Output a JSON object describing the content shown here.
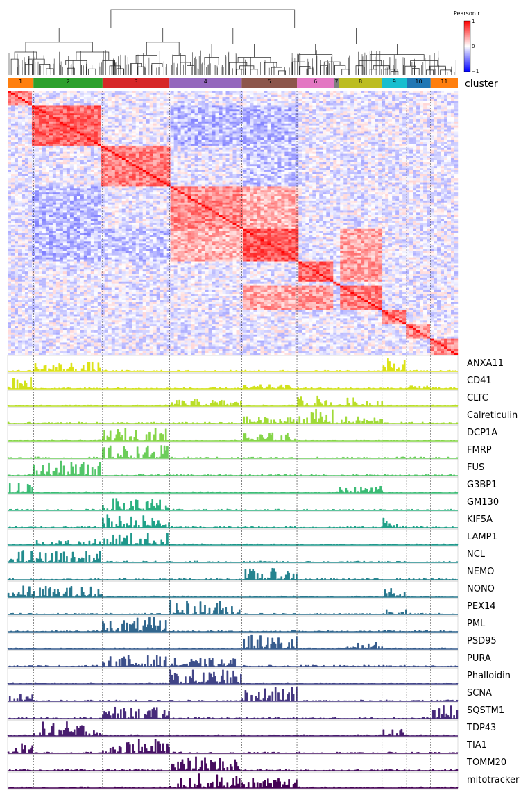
{
  "chart_data": {
    "type": "heatmap",
    "title": "",
    "colorbar": {
      "label": "Pearson r",
      "ticks": [
        "1",
        "0",
        "−1"
      ],
      "range": [
        -1,
        1
      ],
      "colors": {
        "low": "#0000ff",
        "mid": "#ffffff",
        "high": "#ff0000"
      }
    },
    "cluster_row_label": "cluster",
    "clusters": [
      {
        "id": "1",
        "fraction": 0.058,
        "color": "#ff7f0e"
      },
      {
        "id": "2",
        "fraction": 0.155,
        "color": "#2ca02c"
      },
      {
        "id": "3",
        "fraction": 0.15,
        "color": "#d62728"
      },
      {
        "id": "4",
        "fraction": 0.162,
        "color": "#9467bd"
      },
      {
        "id": "5",
        "fraction": 0.124,
        "color": "#8c564b"
      },
      {
        "id": "6",
        "fraction": 0.083,
        "color": "#e377c2"
      },
      {
        "id": "7",
        "fraction": 0.011,
        "color": "#7f7f7f"
      },
      {
        "id": "8",
        "fraction": 0.097,
        "color": "#bcbd22"
      },
      {
        "id": "9",
        "fraction": 0.055,
        "color": "#17becf"
      },
      {
        "id": "10",
        "fraction": 0.054,
        "color": "#1f77b4"
      },
      {
        "id": "11",
        "fraction": 0.061,
        "color": "#ff7f0e"
      }
    ],
    "within_cluster_correlation": [
      0.5,
      0.6,
      0.5,
      0.45,
      0.65,
      0.6,
      0.4,
      0.5,
      0.5,
      0.45,
      0.45
    ],
    "cross_cluster_correlation": [
      {
        "a": "4",
        "b": "5",
        "r": 0.3
      },
      {
        "a": "5",
        "b": "8",
        "r": 0.35
      },
      {
        "a": "6",
        "b": "8",
        "r": 0.4
      },
      {
        "a": "2",
        "b": "4",
        "r": -0.25
      },
      {
        "a": "2",
        "b": "5",
        "r": -0.25
      },
      {
        "a": "3",
        "b": "5",
        "r": -0.2
      }
    ],
    "tracks": [
      {
        "name": "ANXA11",
        "color": "#dde318",
        "peaks": [
          {
            "cluster": "2",
            "level": 0.7
          },
          {
            "cluster": "9",
            "level": 0.9
          }
        ]
      },
      {
        "name": "CD41",
        "color": "#d2e21b",
        "peaks": [
          {
            "cluster": "1",
            "level": 0.9
          },
          {
            "cluster": "5",
            "level": 0.3
          },
          {
            "cluster": "10",
            "level": 0.35
          }
        ]
      },
      {
        "name": "CLTC",
        "color": "#bade28",
        "peaks": [
          {
            "cluster": "4",
            "level": 0.5
          },
          {
            "cluster": "6",
            "level": 0.8
          },
          {
            "cluster": "8",
            "level": 0.6
          }
        ]
      },
      {
        "name": "Calreticulin",
        "color": "#a0da39",
        "peaks": [
          {
            "cluster": "5",
            "level": 0.5
          },
          {
            "cluster": "6",
            "level": 1.0
          },
          {
            "cluster": "8",
            "level": 0.5
          }
        ]
      },
      {
        "name": "DCP1A",
        "color": "#86d549",
        "peaks": [
          {
            "cluster": "3",
            "level": 0.9
          },
          {
            "cluster": "5",
            "level": 0.6
          }
        ]
      },
      {
        "name": "FMRP",
        "color": "#6ccd5a",
        "peaks": [
          {
            "cluster": "3",
            "level": 0.9
          }
        ]
      },
      {
        "name": "FUS",
        "color": "#52c569",
        "peaks": [
          {
            "cluster": "2",
            "level": 1.0
          }
        ]
      },
      {
        "name": "G3BP1",
        "color": "#3bbb75",
        "peaks": [
          {
            "cluster": "1",
            "level": 0.9
          },
          {
            "cluster": "8",
            "level": 0.5
          }
        ]
      },
      {
        "name": "GM130",
        "color": "#2ab07f",
        "peaks": [
          {
            "cluster": "3",
            "level": 0.9
          }
        ]
      },
      {
        "name": "KIF5A",
        "color": "#1fa188",
        "peaks": [
          {
            "cluster": "3",
            "level": 0.9
          },
          {
            "cluster": "9",
            "level": 0.8
          }
        ]
      },
      {
        "name": "LAMP1",
        "color": "#1f988b",
        "peaks": [
          {
            "cluster": "3",
            "level": 0.9
          },
          {
            "cluster": "2",
            "level": 0.4
          }
        ]
      },
      {
        "name": "NCL",
        "color": "#228c8d",
        "peaks": [
          {
            "cluster": "1",
            "level": 0.9
          },
          {
            "cluster": "2",
            "level": 0.8
          }
        ]
      },
      {
        "name": "NEMO",
        "color": "#25838e",
        "peaks": [
          {
            "cluster": "5",
            "level": 0.8
          }
        ]
      },
      {
        "name": "NONO",
        "color": "#29788e",
        "peaks": [
          {
            "cluster": "1",
            "level": 0.8
          },
          {
            "cluster": "2",
            "level": 0.8
          },
          {
            "cluster": "9",
            "level": 0.7
          }
        ]
      },
      {
        "name": "PEX14",
        "color": "#2d708e",
        "peaks": [
          {
            "cluster": "4",
            "level": 1.0
          },
          {
            "cluster": "9",
            "level": 0.5
          }
        ]
      },
      {
        "name": "PML",
        "color": "#31668e",
        "peaks": [
          {
            "cluster": "3",
            "level": 1.0
          }
        ]
      },
      {
        "name": "PSD95",
        "color": "#365c8d",
        "peaks": [
          {
            "cluster": "5",
            "level": 1.0
          },
          {
            "cluster": "8",
            "level": 0.5
          }
        ]
      },
      {
        "name": "PURA",
        "color": "#3c4f8a",
        "peaks": [
          {
            "cluster": "3",
            "level": 0.8
          },
          {
            "cluster": "4",
            "level": 0.6
          }
        ]
      },
      {
        "name": "Phalloidin",
        "color": "#414487",
        "peaks": [
          {
            "cluster": "4",
            "level": 1.0
          }
        ]
      },
      {
        "name": "SCNA",
        "color": "#453781",
        "peaks": [
          {
            "cluster": "1",
            "level": 0.5
          },
          {
            "cluster": "5",
            "level": 1.0
          }
        ]
      },
      {
        "name": "SQSTM1",
        "color": "#472a7a",
        "peaks": [
          {
            "cluster": "3",
            "level": 0.8
          },
          {
            "cluster": "11",
            "level": 0.9
          }
        ]
      },
      {
        "name": "TDP43",
        "color": "#481d6f",
        "peaks": [
          {
            "cluster": "2",
            "level": 1.0
          },
          {
            "cluster": "9",
            "level": 0.5
          }
        ]
      },
      {
        "name": "TIA1",
        "color": "#481467",
        "peaks": [
          {
            "cluster": "3",
            "level": 1.0
          },
          {
            "cluster": "1",
            "level": 0.7
          }
        ]
      },
      {
        "name": "TOMM20",
        "color": "#470d60",
        "peaks": [
          {
            "cluster": "4",
            "level": 1.0
          }
        ]
      },
      {
        "name": "mitotracker",
        "color": "#440154",
        "peaks": [
          {
            "cluster": "4",
            "level": 1.0
          },
          {
            "cluster": "5",
            "level": 0.7
          }
        ]
      }
    ]
  }
}
